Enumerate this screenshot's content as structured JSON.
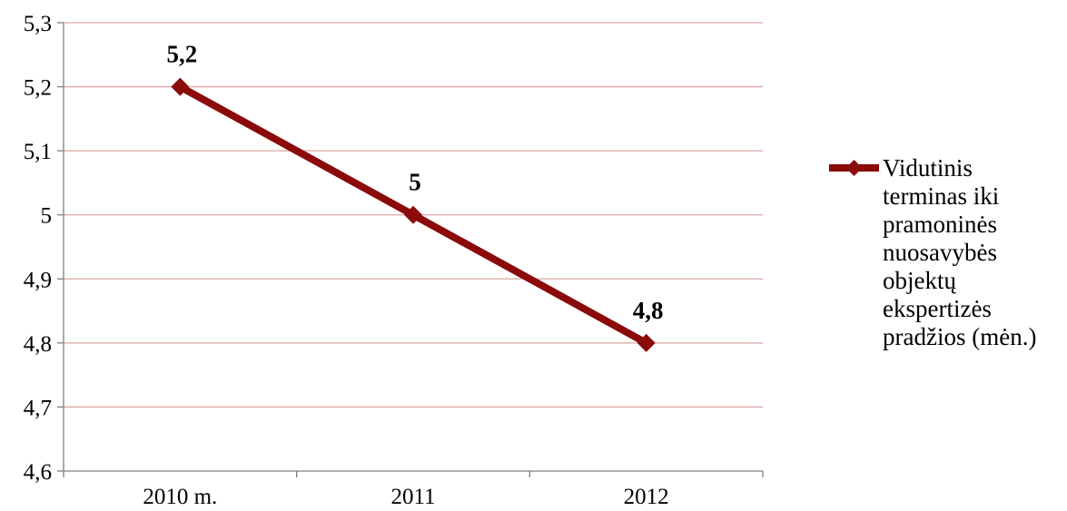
{
  "chart_data": {
    "type": "line",
    "categories": [
      "2010 m.",
      "2011",
      "2012"
    ],
    "series": [
      {
        "name": "Vidutinis terminas iki pramoninės nuosavybės objektų ekspertizės pradžios (mėn.)",
        "values": [
          5.2,
          5.0,
          4.8
        ],
        "data_labels": [
          "5,2",
          "5",
          "4,8"
        ],
        "color": "#8B0A0A"
      }
    ],
    "y_ticks": [
      "4,6",
      "4,7",
      "4,8",
      "4,9",
      "5",
      "5,1",
      "5,2",
      "5,3"
    ],
    "ylim": [
      4.6,
      5.3
    ],
    "grid": true,
    "grid_color": "#D9A6A6",
    "legend_position": "right",
    "legend_lines": [
      "Vidutinis",
      "terminas iki",
      "pramoninės",
      "nuosavybės",
      "objektų",
      "ekspertizės",
      "pradžios (mėn.)"
    ]
  }
}
